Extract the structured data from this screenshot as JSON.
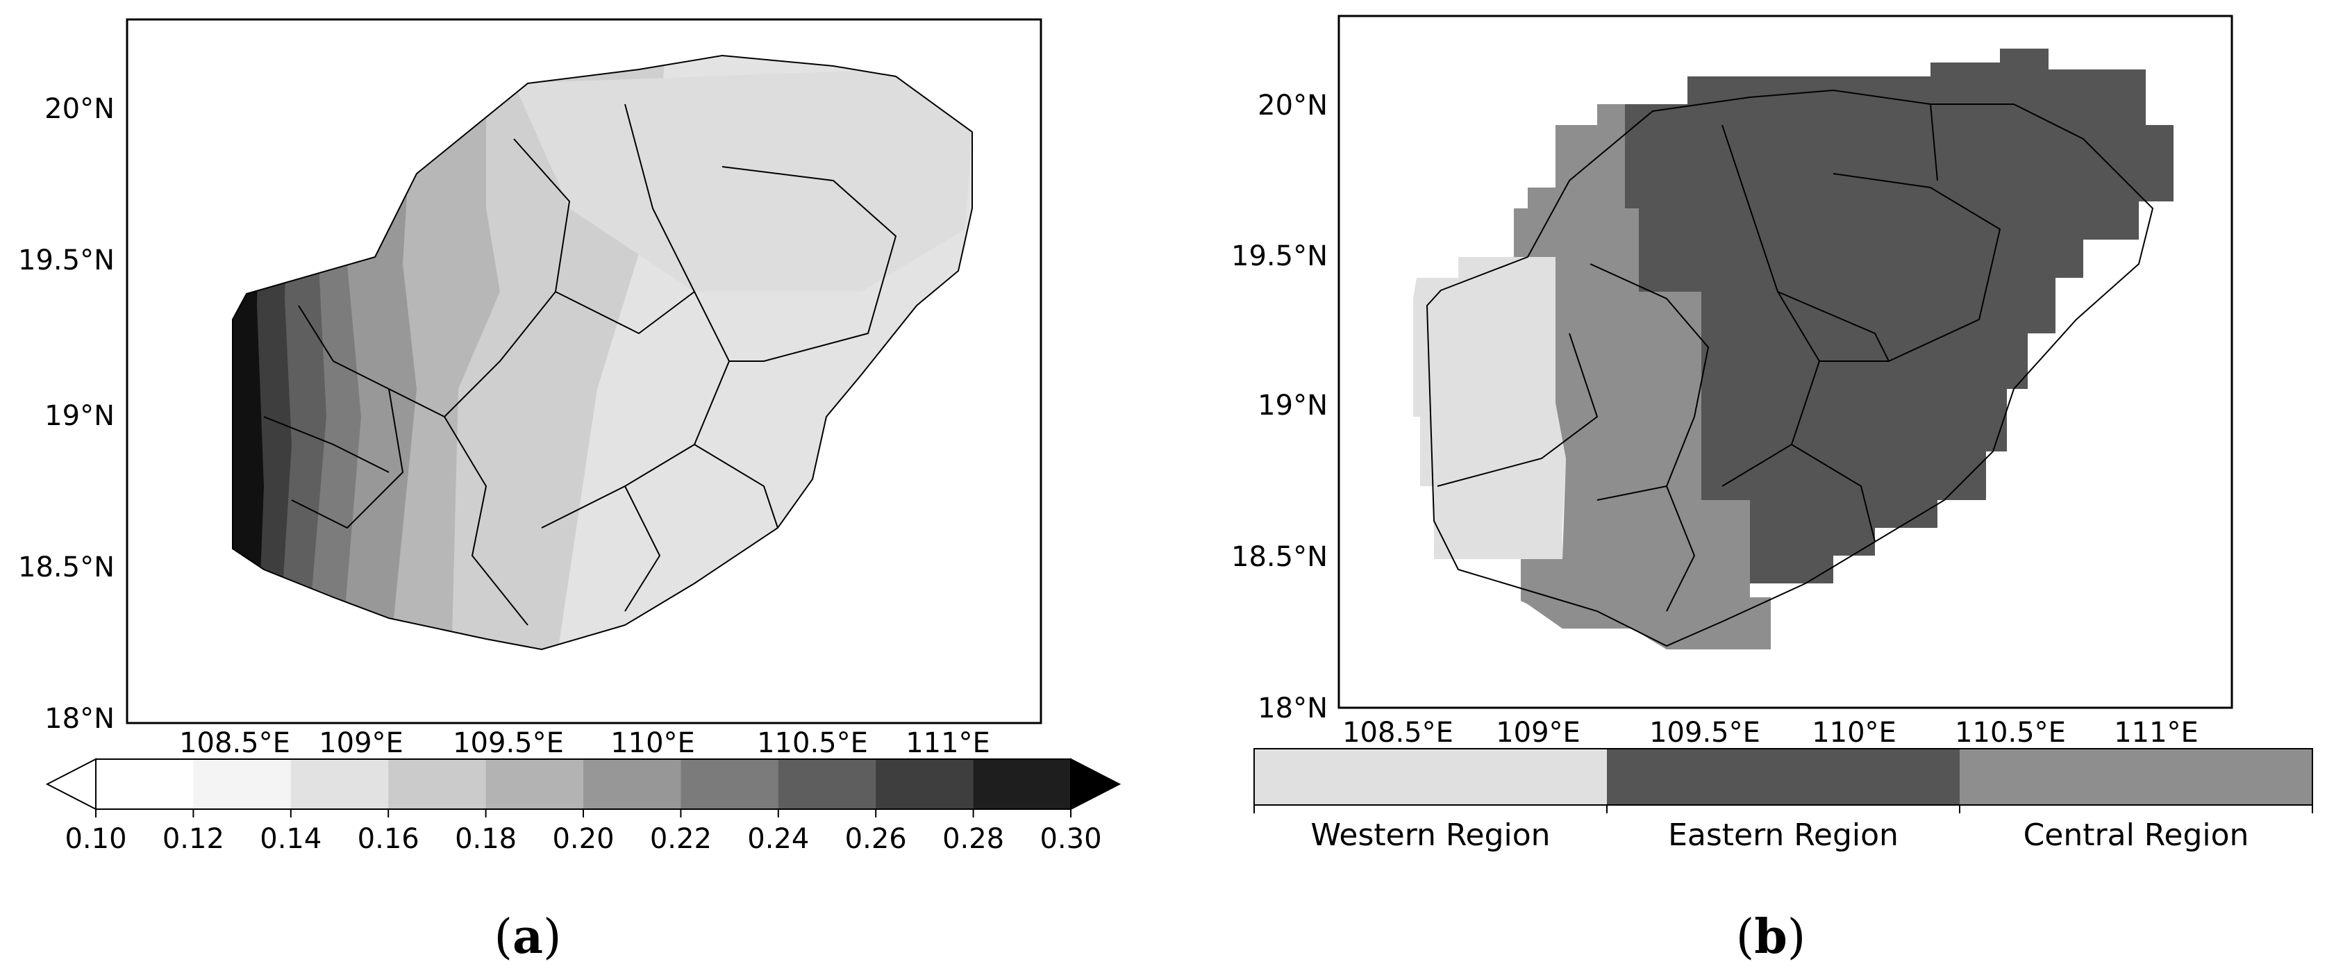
{
  "panel_a": {
    "label_open": "(",
    "label_letter": "a",
    "label_close": ")",
    "lat_ticks": [
      "20°N",
      "19.5°N",
      "19°N",
      "18.5°N",
      "18°N"
    ],
    "lon_ticks": [
      "108.5°E",
      "109°E",
      "109.5°E",
      "110°E",
      "110.5°E",
      "111°E"
    ],
    "colorbar": {
      "ticks": [
        "0.10",
        "0.12",
        "0.14",
        "0.16",
        "0.18",
        "0.20",
        "0.22",
        "0.24",
        "0.26",
        "0.28",
        "0.30"
      ],
      "colors": [
        "#f4f4f4",
        "#e2e2e2",
        "#cbcbcb",
        "#b3b3b3",
        "#979797",
        "#7b7b7b",
        "#5e5e5e",
        "#3e3e3e",
        "#1e1e1e"
      ],
      "extend_low_color": "#ffffff",
      "extend_high_color": "#000000"
    }
  },
  "panel_b": {
    "label_open": "(",
    "label_letter": "b",
    "label_close": ")",
    "lat_ticks": [
      "20°N",
      "19.5°N",
      "19°N",
      "18.5°N",
      "18°N"
    ],
    "lon_ticks": [
      "108.5°E",
      "109°E",
      "109.5°E",
      "110°E",
      "110.5°E",
      "111°E"
    ],
    "legend": [
      {
        "label": "Western Region",
        "color": "#e0e0e0"
      },
      {
        "label": "Eastern Region",
        "color": "#555555"
      },
      {
        "label": "Central Region",
        "color": "#8e8e8e"
      }
    ]
  }
}
